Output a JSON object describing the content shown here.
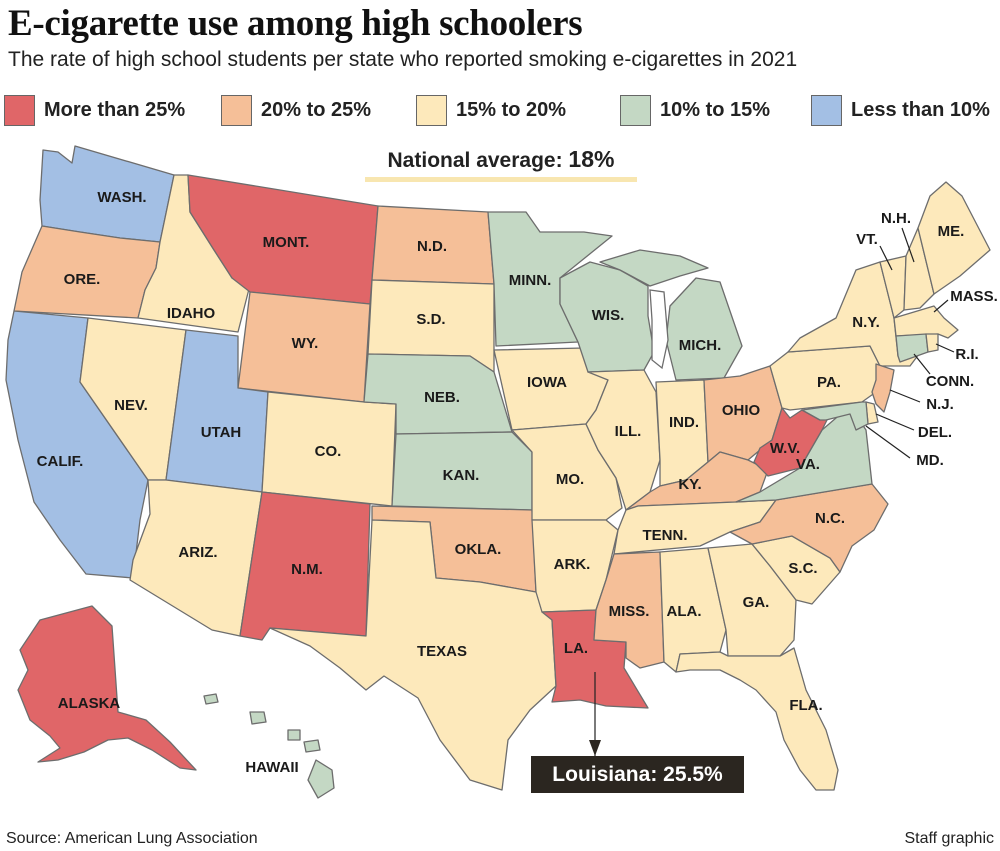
{
  "title": "E-cigarette use among high schoolers",
  "subtitle": "The rate of high school students per state who reported smoking e-cigarettes in 2021",
  "legend": [
    {
      "label": "More than 25%",
      "color": "#e06668"
    },
    {
      "label": "20% to 25%",
      "color": "#f5bf98"
    },
    {
      "label": "15% to 20%",
      "color": "#fde9bb"
    },
    {
      "label": "10% to 15%",
      "color": "#c4d8c4"
    },
    {
      "label": "Less than 10%",
      "color": "#a3bfe4"
    }
  ],
  "national_average": {
    "label": "National average: ",
    "value": "18%"
  },
  "callout": {
    "label": "Louisiana: ",
    "value": "25.5%"
  },
  "states": {
    "wash": "WASH.",
    "ore": "ORE.",
    "calif": "CALIF.",
    "idaho": "IDAHO",
    "nev": "NEV.",
    "mont": "MONT.",
    "wy": "WY.",
    "utah": "UTAH",
    "ariz": "ARIZ.",
    "co": "CO.",
    "nm": "N.M.",
    "nd": "N.D.",
    "sd": "S.D.",
    "neb": "NEB.",
    "kan": "KAN.",
    "okla": "OKLA.",
    "texas": "TEXAS",
    "minn": "MINN.",
    "iowa": "IOWA",
    "mo": "MO.",
    "ark": "ARK.",
    "la": "LA.",
    "wis": "WIS.",
    "ill": "ILL.",
    "mich": "MICH.",
    "ind": "IND.",
    "ohio": "OHIO",
    "ky": "KY.",
    "tenn": "TENN.",
    "miss": "MISS.",
    "ala": "ALA.",
    "ga": "GA.",
    "fla": "FLA.",
    "sc": "S.C.",
    "nc": "N.C.",
    "va": "VA.",
    "wv": "W.V.",
    "pa": "PA.",
    "ny": "N.Y.",
    "vt": "VT.",
    "nh": "N.H.",
    "me": "ME.",
    "mass": "MASS.",
    "ri": "R.I.",
    "conn": "CONN.",
    "nj": "N.J.",
    "del": "DEL.",
    "md": "MD.",
    "alaska": "ALASKA",
    "hawaii": "HAWAII"
  },
  "source": "Source: American Lung Association",
  "credit": "Staff graphic"
}
